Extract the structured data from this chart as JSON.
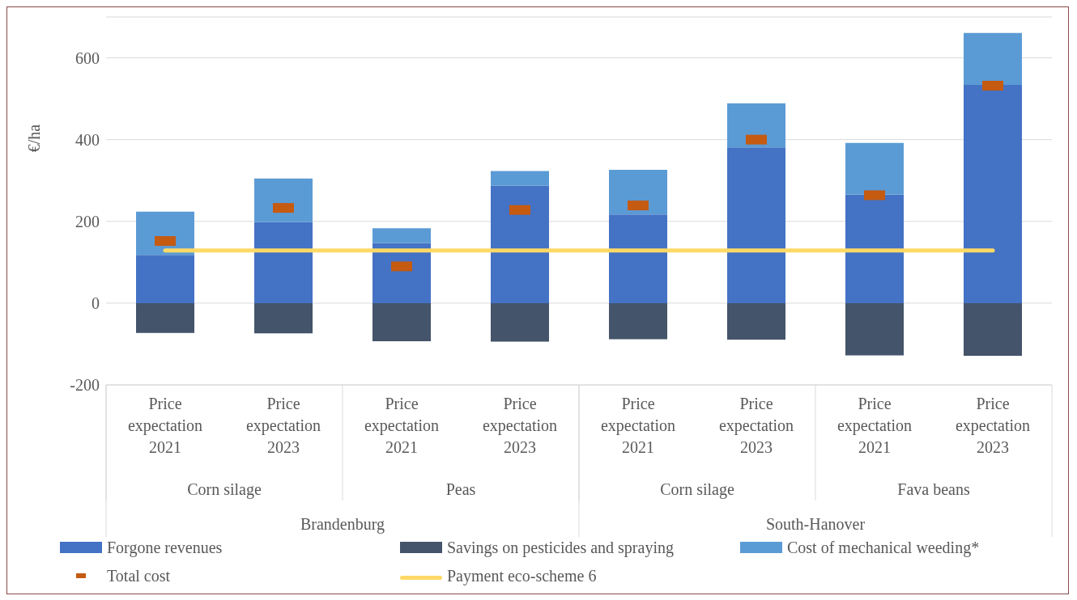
{
  "chart_data": {
    "type": "bar",
    "stacked": true,
    "ylabel": "€/ha",
    "categories": [
      "Price expectation 2021",
      "Price expectation 2023",
      "Price expectation 2021",
      "Price expectation 2023",
      "Price expectation 2021",
      "Price expectation 2023",
      "Price expectation 2021",
      "Price expectation 2023"
    ],
    "annotations": [
      "Corn silage",
      "Peas",
      "Corn silage",
      "Fava beans",
      "Brandenburg",
      "South-Hanover"
    ],
    "series": [
      {
        "name": "Forgone revenues",
        "color": "#4472c4",
        "values": [
          118,
          198,
          147,
          287,
          217,
          381,
          266,
          534
        ]
      },
      {
        "name": "Savings on pesticides and spraying",
        "color": "#44546a",
        "values": [
          -73,
          -74,
          -93,
          -94,
          -88,
          -89,
          -128,
          -129
        ]
      },
      {
        "name": "Cost of mechanical weeding*",
        "color": "#5b9bd5",
        "values": [
          106,
          107,
          36,
          36,
          109,
          108,
          126,
          127
        ]
      },
      {
        "name": "Total cost",
        "type": "scatter",
        "color": "#c55a11",
        "values": [
          152,
          233,
          90,
          228,
          239,
          400,
          264,
          532
        ]
      },
      {
        "name": "Payment eco-scheme 6",
        "type": "line",
        "color": "#ffd966",
        "marker": "none",
        "values": [
          129,
          129,
          129,
          129,
          129,
          129,
          129,
          129
        ]
      }
    ],
    "ylim": [
      -200,
      700
    ],
    "yticks": [
      -200,
      0,
      200,
      400,
      600
    ],
    "grid": "y",
    "legend": "bottom"
  }
}
